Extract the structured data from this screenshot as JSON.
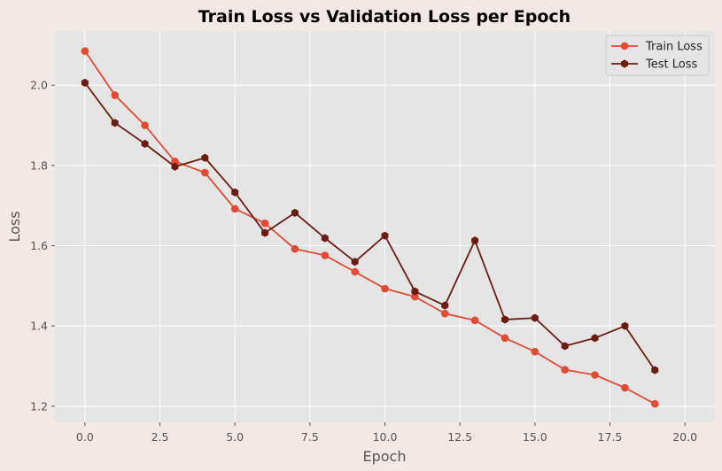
{
  "chart_data": {
    "type": "line",
    "title": "Train Loss vs Validation Loss per Epoch",
    "xlabel": "Epoch",
    "ylabel": "Loss",
    "xlim": [
      -1,
      21
    ],
    "ylim": [
      1.16,
      2.135
    ],
    "xticks": [
      0.0,
      2.5,
      5.0,
      7.5,
      10.0,
      12.5,
      15.0,
      17.5,
      20.0
    ],
    "xtick_labels": [
      "0.0",
      "2.5",
      "5.0",
      "7.5",
      "10.0",
      "12.5",
      "15.0",
      "17.5",
      "20.0"
    ],
    "yticks": [
      1.2,
      1.4,
      1.6,
      1.8,
      2.0
    ],
    "ytick_labels": [
      "1.2",
      "1.4",
      "1.6",
      "1.8",
      "2.0"
    ],
    "grid": true,
    "legend_position": "top-right",
    "x": [
      0,
      1,
      2,
      3,
      4,
      5,
      6,
      7,
      8,
      9,
      10,
      11,
      12,
      13,
      14,
      15,
      16,
      17,
      18,
      19
    ],
    "series": [
      {
        "name": "Train Loss",
        "color": "#e24a33",
        "marker": "circle",
        "values": [
          2.085,
          1.975,
          1.9,
          1.81,
          1.782,
          1.692,
          1.656,
          1.592,
          1.576,
          1.535,
          1.493,
          1.473,
          1.431,
          1.414,
          1.37,
          1.336,
          1.291,
          1.278,
          1.246,
          1.206
        ]
      },
      {
        "name": "Test Loss",
        "color": "#6b1c12",
        "marker": "hexagon",
        "values": [
          2.006,
          1.906,
          1.854,
          1.797,
          1.819,
          1.733,
          1.632,
          1.682,
          1.619,
          1.56,
          1.625,
          1.486,
          1.451,
          1.613,
          1.416,
          1.42,
          1.35,
          1.37,
          1.4,
          1.29
        ]
      }
    ]
  }
}
